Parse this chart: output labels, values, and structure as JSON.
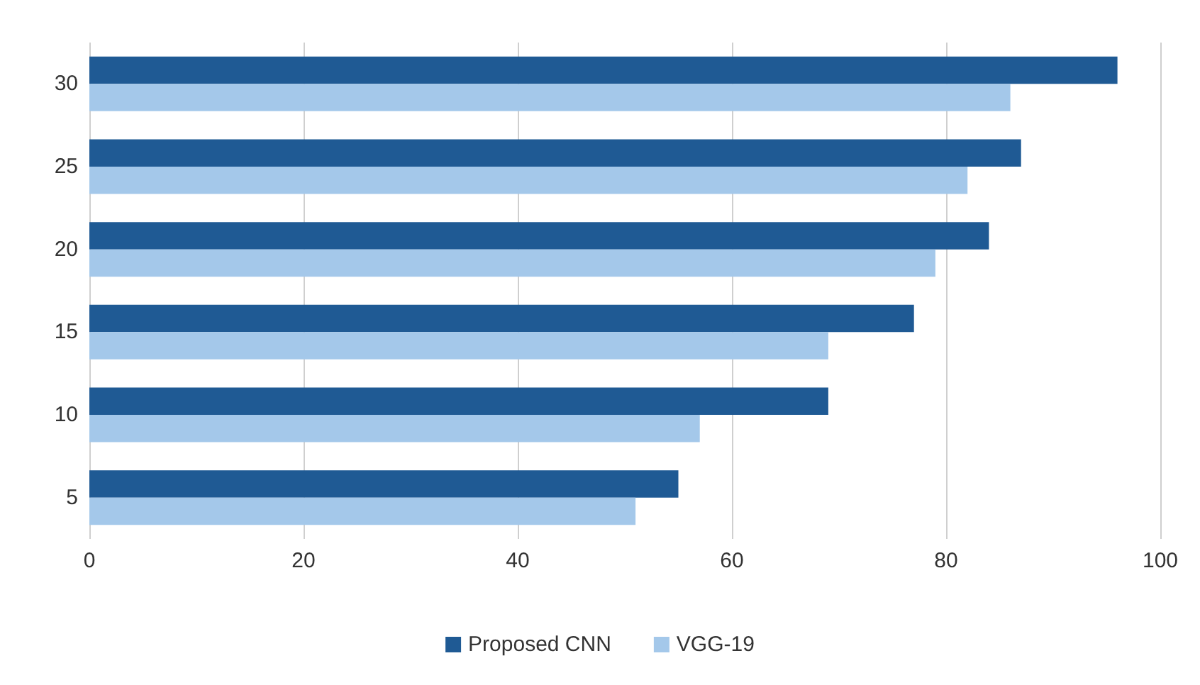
{
  "chart_data": {
    "type": "bar",
    "orientation": "horizontal",
    "categories": [
      "30",
      "25",
      "20",
      "15",
      "10",
      "5"
    ],
    "series": [
      {
        "name": "Proposed CNN",
        "color": "#1f5a94",
        "values": [
          96,
          87,
          84,
          77,
          69,
          55
        ]
      },
      {
        "name": "VGG-19",
        "color": "#a4c8ea",
        "values": [
          86,
          82,
          79,
          69,
          57,
          51
        ]
      }
    ],
    "xlim": [
      0,
      100
    ],
    "xticks": [
      0,
      20,
      40,
      60,
      80,
      100
    ],
    "grid": "x",
    "legend": "bottom"
  }
}
